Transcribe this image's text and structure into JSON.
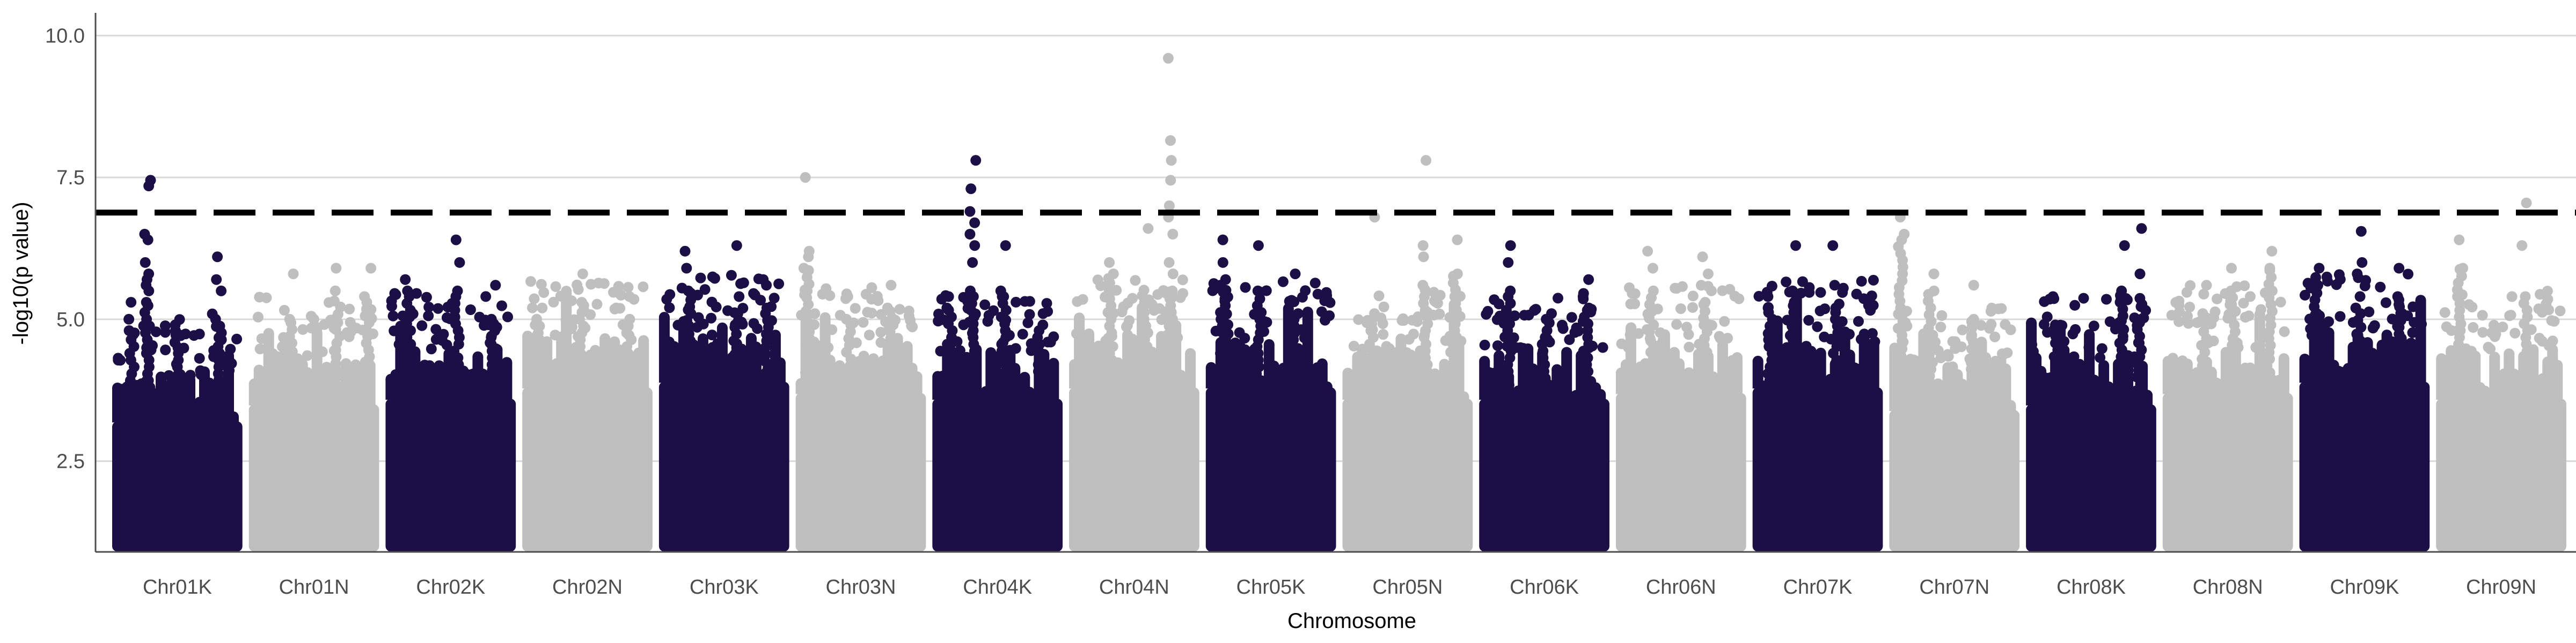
{
  "chart_data": {
    "type": "scatter",
    "subtype": "manhattan",
    "title": "",
    "xlabel": "Chromosome",
    "ylabel": "-log10(p value)",
    "ylim": [
      0.9,
      10.4
    ],
    "yticks": [
      2.5,
      5.0,
      7.5,
      10.0
    ],
    "ytick_labels": [
      "2.5",
      "5.0",
      "7.5",
      "10.0"
    ],
    "grid": "horizontal major lines only",
    "legend": "none",
    "significance_threshold": 6.88,
    "min_plotted_value": 1.0,
    "colors": {
      "dark": "#1c0f45",
      "light": "#bfbfbf",
      "threshold": "#000000",
      "grid": "#d9d9d9",
      "axis": "#4d4d4d"
    },
    "chromosomes": [
      {
        "name": "Chr01K",
        "color": "dark",
        "dense_top": 3.2,
        "peaks": [
          {
            "pos": 0.25,
            "values": [
              7.45,
              7.35,
              6.5,
              6.4,
              6.0,
              5.8,
              5.7,
              5.6,
              5.5,
              5.3
            ]
          },
          {
            "pos": 0.12,
            "values": [
              5.3,
              5.0,
              4.8
            ]
          },
          {
            "pos": 0.5,
            "values": [
              4.9,
              4.8,
              4.5
            ]
          },
          {
            "pos": 0.85,
            "values": [
              6.1,
              5.7,
              5.5,
              5.0
            ]
          }
        ]
      },
      {
        "name": "Chr01N",
        "color": "light",
        "dense_top": 3.5,
        "peaks": [
          {
            "pos": 0.3,
            "values": [
              5.8,
              5.0
            ]
          },
          {
            "pos": 0.7,
            "values": [
              5.9,
              5.5,
              5.0
            ]
          },
          {
            "pos": 0.95,
            "values": [
              5.9,
              5.4
            ]
          }
        ]
      },
      {
        "name": "Chr02K",
        "color": "dark",
        "dense_top": 3.6,
        "peaks": [
          {
            "pos": 0.15,
            "values": [
              5.7,
              5.5
            ]
          },
          {
            "pos": 0.55,
            "values": [
              6.4,
              6.0,
              5.5
            ]
          },
          {
            "pos": 0.85,
            "values": [
              5.6,
              5.0
            ]
          }
        ]
      },
      {
        "name": "Chr02N",
        "color": "light",
        "dense_top": 3.8,
        "peaks": [
          {
            "pos": 0.1,
            "values": [
              5.2,
              5.0
            ]
          },
          {
            "pos": 0.45,
            "values": [
              5.8,
              5.3
            ]
          },
          {
            "pos": 0.85,
            "values": [
              5.4,
              5.0
            ]
          }
        ]
      },
      {
        "name": "Chr03K",
        "color": "dark",
        "dense_top": 3.9,
        "peaks": [
          {
            "pos": 0.2,
            "values": [
              6.2,
              5.9,
              5.5
            ]
          },
          {
            "pos": 0.6,
            "values": [
              6.3,
              5.4,
              5.1
            ]
          },
          {
            "pos": 0.85,
            "values": [
              5.7,
              5.6,
              5.2
            ]
          }
        ]
      },
      {
        "name": "Chr03N",
        "color": "light",
        "dense_top": 3.7,
        "peaks": [
          {
            "pos": 0.05,
            "values": [
              7.5,
              6.2,
              6.1,
              5.9
            ]
          },
          {
            "pos": 0.4,
            "values": [
              5.4,
              5.0
            ]
          },
          {
            "pos": 0.75,
            "values": [
              5.6,
              5.2
            ]
          }
        ]
      },
      {
        "name": "Chr04K",
        "color": "dark",
        "dense_top": 3.6,
        "peaks": [
          {
            "pos": 0.3,
            "values": [
              7.8,
              7.3,
              6.9,
              6.7,
              6.5,
              6.3,
              6.0,
              5.5
            ]
          },
          {
            "pos": 0.1,
            "values": [
              5.4,
              5.2
            ]
          },
          {
            "pos": 0.55,
            "values": [
              6.3,
              5.5
            ]
          },
          {
            "pos": 0.85,
            "values": [
              5.1,
              4.9
            ]
          }
        ]
      },
      {
        "name": "Chr04N",
        "color": "light",
        "dense_top": 3.8,
        "peaks": [
          {
            "pos": 0.8,
            "values": [
              9.6,
              8.15,
              7.8,
              7.45,
              7.0,
              6.8,
              6.5,
              6.0,
              5.8,
              5.5
            ]
          },
          {
            "pos": 0.3,
            "values": [
              6.0,
              5.8
            ]
          },
          {
            "pos": 0.6,
            "values": [
              6.6,
              5.3
            ]
          }
        ]
      },
      {
        "name": "Chr05K",
        "color": "dark",
        "dense_top": 3.8,
        "peaks": [
          {
            "pos": 0.1,
            "values": [
              6.4,
              6.0,
              5.7
            ]
          },
          {
            "pos": 0.4,
            "values": [
              6.3,
              5.5
            ]
          },
          {
            "pos": 0.7,
            "values": [
              5.8,
              5.1
            ]
          }
        ]
      },
      {
        "name": "Chr05N",
        "color": "light",
        "dense_top": 3.6,
        "peaks": [
          {
            "pos": 0.65,
            "values": [
              7.8,
              6.3,
              6.1,
              5.6
            ]
          },
          {
            "pos": 0.2,
            "values": [
              6.8,
              5.1
            ]
          },
          {
            "pos": 0.9,
            "values": [
              6.4,
              5.8
            ]
          }
        ]
      },
      {
        "name": "Chr06K",
        "color": "dark",
        "dense_top": 3.6,
        "peaks": [
          {
            "pos": 0.2,
            "values": [
              6.3,
              6.0,
              5.5
            ]
          },
          {
            "pos": 0.85,
            "values": [
              5.7,
              5.4,
              5.2
            ]
          },
          {
            "pos": 0.5,
            "values": [
              5.0,
              4.8
            ]
          }
        ]
      },
      {
        "name": "Chr06N",
        "color": "light",
        "dense_top": 3.7,
        "peaks": [
          {
            "pos": 0.25,
            "values": [
              6.2,
              5.9,
              5.5
            ]
          },
          {
            "pos": 0.7,
            "values": [
              6.1,
              5.8,
              5.3
            ]
          }
        ]
      },
      {
        "name": "Chr07K",
        "color": "dark",
        "dense_top": 3.8,
        "peaks": [
          {
            "pos": 0.3,
            "values": [
              6.3,
              5.5,
              5.3
            ]
          },
          {
            "pos": 0.65,
            "values": [
              6.3,
              5.6,
              5.2
            ]
          },
          {
            "pos": 0.1,
            "values": [
              5.4,
              5.2
            ]
          }
        ]
      },
      {
        "name": "Chr07N",
        "color": "light",
        "dense_top": 3.4,
        "peaks": [
          {
            "pos": 0.05,
            "values": [
              6.8,
              6.5
            ]
          },
          {
            "pos": 0.3,
            "values": [
              5.8,
              5.5
            ]
          },
          {
            "pos": 0.65,
            "values": [
              5.6,
              5.0
            ]
          }
        ]
      },
      {
        "name": "Chr08K",
        "color": "dark",
        "dense_top": 3.5,
        "peaks": [
          {
            "pos": 0.2,
            "values": [
              5.4,
              4.9
            ]
          },
          {
            "pos": 0.75,
            "values": [
              6.3,
              5.5
            ]
          },
          {
            "pos": 0.9,
            "values": [
              6.6,
              5.8,
              5.0
            ]
          }
        ]
      },
      {
        "name": "Chr08N",
        "color": "light",
        "dense_top": 3.7,
        "peaks": [
          {
            "pos": 0.3,
            "values": [
              5.6,
              5.1
            ]
          },
          {
            "pos": 0.55,
            "values": [
              5.9,
              5.5
            ]
          },
          {
            "pos": 0.85,
            "values": [
              6.2,
              5.9
            ]
          }
        ]
      },
      {
        "name": "Chr09K",
        "color": "dark",
        "dense_top": 3.9,
        "peaks": [
          {
            "pos": 0.1,
            "values": [
              5.9,
              5.6
            ]
          },
          {
            "pos": 0.45,
            "values": [
              6.55,
              6.0,
              5.8,
              5.2
            ]
          },
          {
            "pos": 0.8,
            "values": [
              5.9,
              5.4
            ]
          }
        ]
      },
      {
        "name": "Chr09N",
        "color": "light",
        "dense_top": 3.6,
        "peaks": [
          {
            "pos": 0.15,
            "values": [
              6.4,
              5.9
            ]
          },
          {
            "pos": 0.7,
            "values": [
              7.05,
              6.3,
              5.4
            ]
          }
        ]
      }
    ]
  }
}
